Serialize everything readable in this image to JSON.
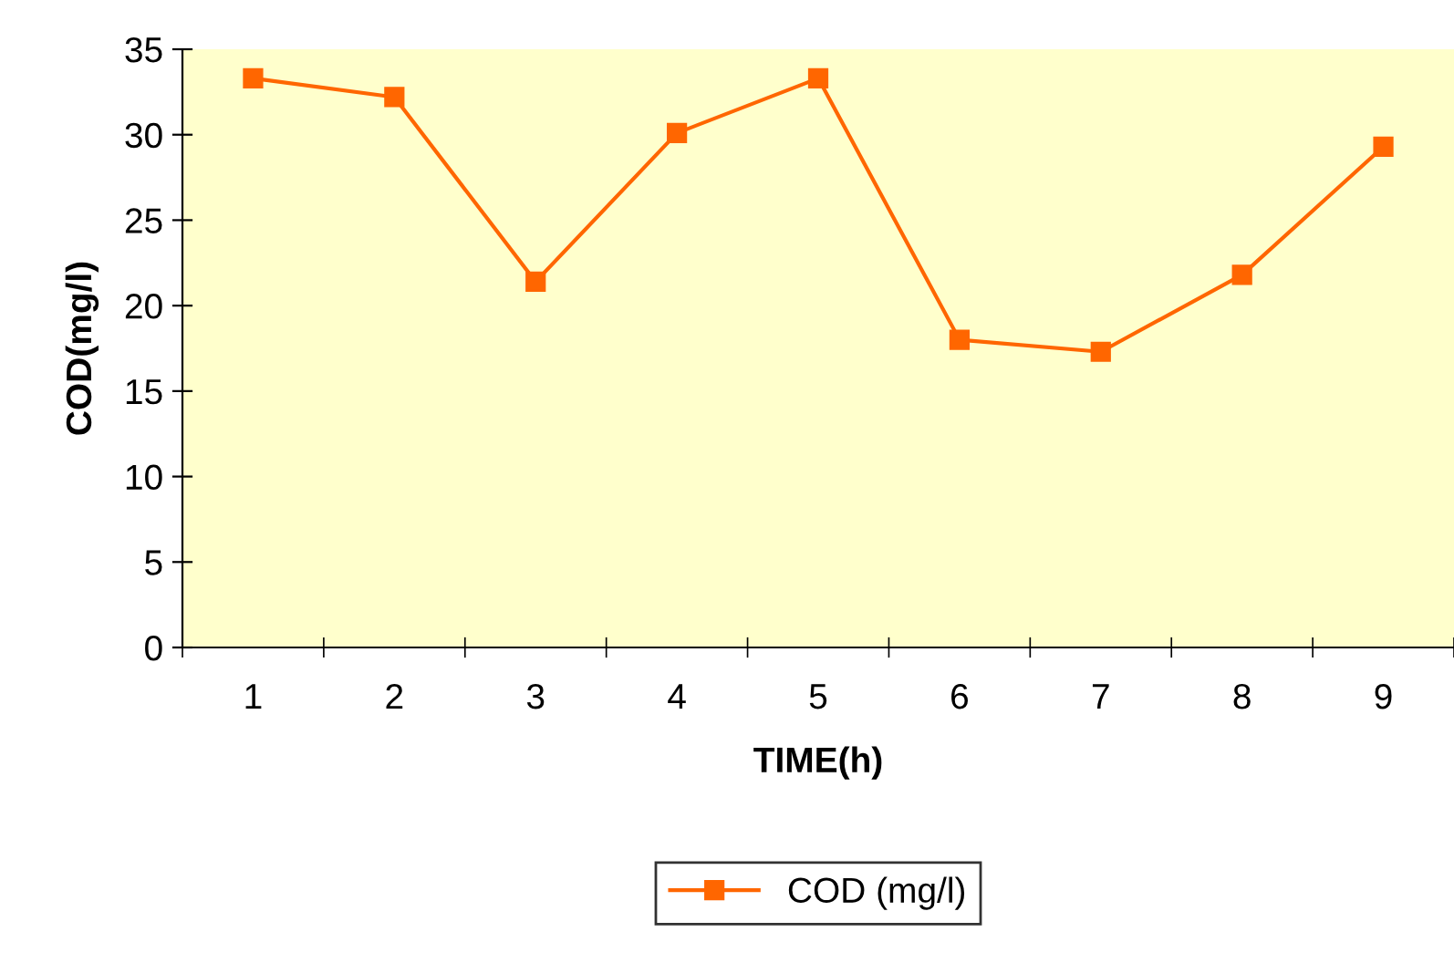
{
  "chart_data": {
    "type": "line",
    "xlabel": "TIME(h)",
    "ylabel": "COD(mg/l)",
    "categories": [
      "1",
      "2",
      "3",
      "4",
      "5",
      "6",
      "7",
      "8",
      "9"
    ],
    "series": [
      {
        "name": "COD (mg/l)",
        "color": "#ff6600",
        "values": [
          33.3,
          32.2,
          21.4,
          30.1,
          33.3,
          18.0,
          17.3,
          21.8,
          29.3
        ]
      }
    ],
    "ylim": [
      0,
      35
    ],
    "yticks": [
      0,
      5,
      10,
      15,
      20,
      25,
      30,
      35
    ],
    "grid": false,
    "legend": "bottom",
    "marker": "square",
    "line_style": "solid"
  }
}
